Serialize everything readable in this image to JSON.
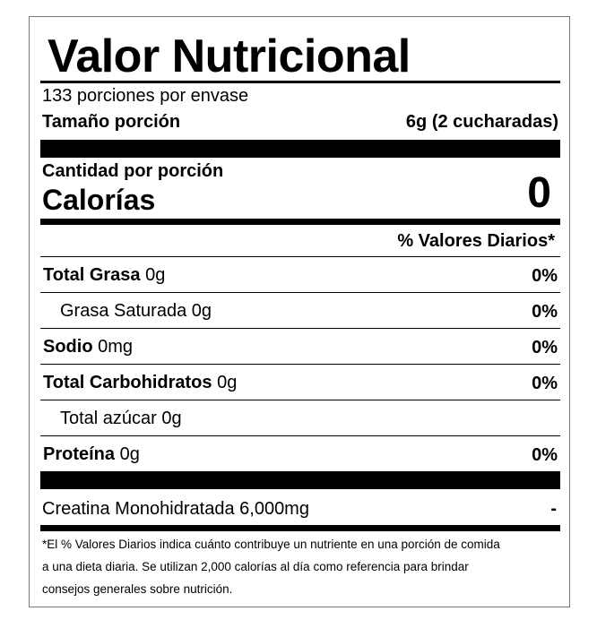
{
  "title": "Valor Nutricional",
  "servings_per_container": "133 porciones por envase",
  "serving_size_label": "Tamaño porción",
  "serving_size_value": "6g (2 cucharadas)",
  "amount_per_serving": "Cantidad por porción",
  "calories_label": "Calorías",
  "calories_value": "0",
  "daily_value_header": "% Valores Diarios*",
  "nutrients": [
    {
      "name": "Total Grasa",
      "amount": " 0g",
      "dv": "0%",
      "indent": false
    },
    {
      "name": "Grasa Saturada 0g",
      "amount": "",
      "dv": "0%",
      "indent": true
    },
    {
      "name": "Sodio",
      "amount": " 0mg",
      "dv": "0%",
      "indent": false
    },
    {
      "name": "Total Carbohidratos",
      "amount": " 0g",
      "dv": "0%",
      "indent": false
    },
    {
      "name": "Total azúcar 0g",
      "amount": "",
      "dv": "",
      "indent": true
    },
    {
      "name": "Proteína",
      "amount": " 0g",
      "dv": "0%",
      "indent": false
    }
  ],
  "supplement": {
    "name": "Creatina Monohidratada 6,000mg",
    "dv": "-"
  },
  "footnote": [
    "*El % Valores Diarios indica cuánto contribuye un nutriente en una porción de comida",
    "a una dieta diaria. Se utilizan 2,000 calorías al día como referencia para brindar",
    "consejos generales sobre nutrición."
  ]
}
